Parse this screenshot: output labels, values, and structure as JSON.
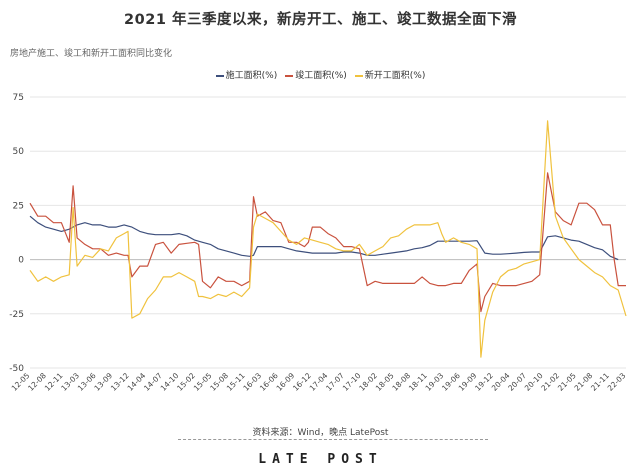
{
  "chart_data": {
    "type": "line",
    "title": "2021 年三季度以来，新房开工、施工、竣工数据全面下滑",
    "subtitle": "房地产施工、竣工和新开工面积同比变化",
    "ylim": [
      -50,
      75
    ],
    "yticks": [
      -50,
      -25,
      0,
      25,
      50,
      75
    ],
    "grid": true,
    "legend_position": "top-center",
    "x_tick_labels": [
      "12-05",
      "12-08",
      "12-11",
      "13-03",
      "13-06",
      "13-09",
      "13-12",
      "14-04",
      "14-07",
      "14-10",
      "15-02",
      "15-05",
      "15-08",
      "15-11",
      "16-03",
      "16-06",
      "16-09",
      "16-12",
      "17-04",
      "17-07",
      "17-10",
      "18-02",
      "18-05",
      "18-08",
      "18-11",
      "19-03",
      "19-06",
      "19-09",
      "19-12",
      "20-04",
      "20-07",
      "20-10",
      "21-02",
      "21-05",
      "21-08",
      "21-11",
      "22-03"
    ],
    "series": [
      {
        "name": "施工面积(%)",
        "color": "#3d4f7c",
        "points": [
          [
            0,
            20
          ],
          [
            2,
            17
          ],
          [
            4,
            15
          ],
          [
            6,
            14
          ],
          [
            8,
            13
          ],
          [
            10,
            14
          ],
          [
            12,
            16
          ],
          [
            14,
            17
          ],
          [
            16,
            16
          ],
          [
            18,
            16
          ],
          [
            20,
            15
          ],
          [
            22,
            15
          ],
          [
            24,
            16
          ],
          [
            26,
            15
          ],
          [
            28,
            13
          ],
          [
            30,
            12
          ],
          [
            32,
            11.5
          ],
          [
            34,
            11.5
          ],
          [
            36,
            11.5
          ],
          [
            38,
            12
          ],
          [
            40,
            11
          ],
          [
            42,
            9
          ],
          [
            44,
            8
          ],
          [
            46,
            7
          ],
          [
            48,
            5
          ],
          [
            50,
            4
          ],
          [
            52,
            3
          ],
          [
            54,
            2
          ],
          [
            56,
            1.5
          ],
          [
            57,
            2
          ],
          [
            58,
            6
          ],
          [
            60,
            6
          ],
          [
            62,
            6
          ],
          [
            64,
            6
          ],
          [
            66,
            5
          ],
          [
            68,
            4
          ],
          [
            70,
            3.5
          ],
          [
            72,
            3
          ],
          [
            74,
            3
          ],
          [
            76,
            3
          ],
          [
            78,
            3
          ],
          [
            80,
            3.5
          ],
          [
            82,
            3.5
          ],
          [
            84,
            3
          ],
          [
            86,
            2
          ],
          [
            88,
            2
          ],
          [
            90,
            2.5
          ],
          [
            92,
            3
          ],
          [
            94,
            3.5
          ],
          [
            96,
            4
          ],
          [
            98,
            5
          ],
          [
            100,
            5.5
          ],
          [
            102,
            6.5
          ],
          [
            104,
            8.5
          ],
          [
            106,
            8.5
          ],
          [
            108,
            8.5
          ],
          [
            110,
            8.5
          ],
          [
            112,
            8.5
          ],
          [
            114,
            8.7
          ],
          [
            116,
            3
          ],
          [
            118,
            2.5
          ],
          [
            120,
            2.5
          ],
          [
            122,
            2.7
          ],
          [
            124,
            3
          ],
          [
            126,
            3.3
          ],
          [
            128,
            3.5
          ],
          [
            130,
            3.5
          ],
          [
            132,
            10.5
          ],
          [
            134,
            11
          ],
          [
            136,
            10
          ],
          [
            138,
            9
          ],
          [
            140,
            8.5
          ],
          [
            142,
            7
          ],
          [
            144,
            5.5
          ],
          [
            146,
            4.5
          ],
          [
            148,
            1.5
          ],
          [
            150,
            0
          ]
        ]
      },
      {
        "name": "竣工面积(%)",
        "color": "#c9523e",
        "points": [
          [
            0,
            26
          ],
          [
            1,
            23
          ],
          [
            2,
            20
          ],
          [
            4,
            20
          ],
          [
            6,
            17
          ],
          [
            8,
            17
          ],
          [
            10,
            8
          ],
          [
            11,
            34
          ],
          [
            12,
            10
          ],
          [
            14,
            7
          ],
          [
            16,
            5
          ],
          [
            18,
            5
          ],
          [
            20,
            2
          ],
          [
            22,
            3
          ],
          [
            24,
            2
          ],
          [
            25,
            2
          ],
          [
            26,
            -8
          ],
          [
            28,
            -3
          ],
          [
            30,
            -3
          ],
          [
            32,
            7
          ],
          [
            34,
            8
          ],
          [
            36,
            3
          ],
          [
            38,
            7
          ],
          [
            40,
            7.5
          ],
          [
            42,
            8
          ],
          [
            43,
            7
          ],
          [
            44,
            -10
          ],
          [
            46,
            -13
          ],
          [
            48,
            -8
          ],
          [
            50,
            -10
          ],
          [
            52,
            -10
          ],
          [
            54,
            -12
          ],
          [
            56,
            -10
          ],
          [
            57,
            29
          ],
          [
            58,
            20
          ],
          [
            60,
            22
          ],
          [
            62,
            18
          ],
          [
            64,
            17
          ],
          [
            66,
            8
          ],
          [
            68,
            8
          ],
          [
            70,
            6
          ],
          [
            71,
            8
          ],
          [
            72,
            15
          ],
          [
            74,
            15
          ],
          [
            76,
            12
          ],
          [
            78,
            10
          ],
          [
            80,
            6
          ],
          [
            82,
            6
          ],
          [
            84,
            5
          ],
          [
            86,
            -12
          ],
          [
            88,
            -10
          ],
          [
            90,
            -11
          ],
          [
            92,
            -11
          ],
          [
            94,
            -11
          ],
          [
            96,
            -11
          ],
          [
            98,
            -11
          ],
          [
            100,
            -8
          ],
          [
            102,
            -11
          ],
          [
            104,
            -12
          ],
          [
            106,
            -12
          ],
          [
            108,
            -11
          ],
          [
            110,
            -11
          ],
          [
            112,
            -5
          ],
          [
            114,
            -2
          ],
          [
            115,
            -24
          ],
          [
            116,
            -17
          ],
          [
            118,
            -11
          ],
          [
            120,
            -12
          ],
          [
            122,
            -12
          ],
          [
            124,
            -12
          ],
          [
            126,
            -11
          ],
          [
            128,
            -10
          ],
          [
            130,
            -7
          ],
          [
            132,
            40
          ],
          [
            134,
            22
          ],
          [
            136,
            18
          ],
          [
            138,
            16
          ],
          [
            140,
            26
          ],
          [
            142,
            26
          ],
          [
            144,
            23
          ],
          [
            146,
            16
          ],
          [
            148,
            16
          ],
          [
            149,
            0
          ],
          [
            150,
            -12
          ],
          [
            152,
            -12
          ]
        ]
      },
      {
        "name": "新开工面积(%)",
        "color": "#f0c23e",
        "points": [
          [
            0,
            -5
          ],
          [
            2,
            -10
          ],
          [
            4,
            -8
          ],
          [
            6,
            -10
          ],
          [
            8,
            -8
          ],
          [
            10,
            -7
          ],
          [
            11,
            24
          ],
          [
            12,
            -3
          ],
          [
            14,
            2
          ],
          [
            16,
            1
          ],
          [
            18,
            5
          ],
          [
            20,
            4
          ],
          [
            22,
            10
          ],
          [
            24,
            12
          ],
          [
            25,
            13
          ],
          [
            26,
            -27
          ],
          [
            28,
            -25
          ],
          [
            30,
            -18
          ],
          [
            32,
            -14
          ],
          [
            34,
            -8
          ],
          [
            36,
            -8
          ],
          [
            38,
            -6
          ],
          [
            40,
            -8
          ],
          [
            42,
            -10
          ],
          [
            43,
            -17
          ],
          [
            44,
            -17
          ],
          [
            46,
            -18
          ],
          [
            48,
            -16
          ],
          [
            50,
            -17
          ],
          [
            52,
            -15
          ],
          [
            54,
            -17
          ],
          [
            56,
            -13
          ],
          [
            57,
            15
          ],
          [
            58,
            21
          ],
          [
            60,
            19
          ],
          [
            62,
            17
          ],
          [
            64,
            13
          ],
          [
            66,
            9
          ],
          [
            68,
            7
          ],
          [
            70,
            10
          ],
          [
            72,
            9
          ],
          [
            74,
            8
          ],
          [
            76,
            7
          ],
          [
            78,
            5
          ],
          [
            80,
            4
          ],
          [
            82,
            4
          ],
          [
            84,
            7
          ],
          [
            86,
            2
          ],
          [
            88,
            4
          ],
          [
            90,
            6
          ],
          [
            92,
            10
          ],
          [
            94,
            11
          ],
          [
            96,
            14
          ],
          [
            98,
            16
          ],
          [
            100,
            16
          ],
          [
            102,
            16
          ],
          [
            104,
            17
          ],
          [
            105,
            12
          ],
          [
            106,
            8
          ],
          [
            108,
            10
          ],
          [
            110,
            8
          ],
          [
            112,
            7
          ],
          [
            114,
            5
          ],
          [
            115,
            -45
          ],
          [
            116,
            -28
          ],
          [
            118,
            -15
          ],
          [
            120,
            -8
          ],
          [
            122,
            -5
          ],
          [
            124,
            -4
          ],
          [
            126,
            -2
          ],
          [
            128,
            -1
          ],
          [
            130,
            0
          ],
          [
            132,
            64
          ],
          [
            134,
            20
          ],
          [
            136,
            10
          ],
          [
            138,
            5
          ],
          [
            140,
            0
          ],
          [
            142,
            -3
          ],
          [
            144,
            -6
          ],
          [
            146,
            -8
          ],
          [
            148,
            -12
          ],
          [
            150,
            -14
          ],
          [
            152,
            -26
          ]
        ]
      }
    ],
    "x_count": 153
  },
  "footer": {
    "source": "资料来源：Wind，晚点 LatePost",
    "brand": "LATE POST"
  }
}
